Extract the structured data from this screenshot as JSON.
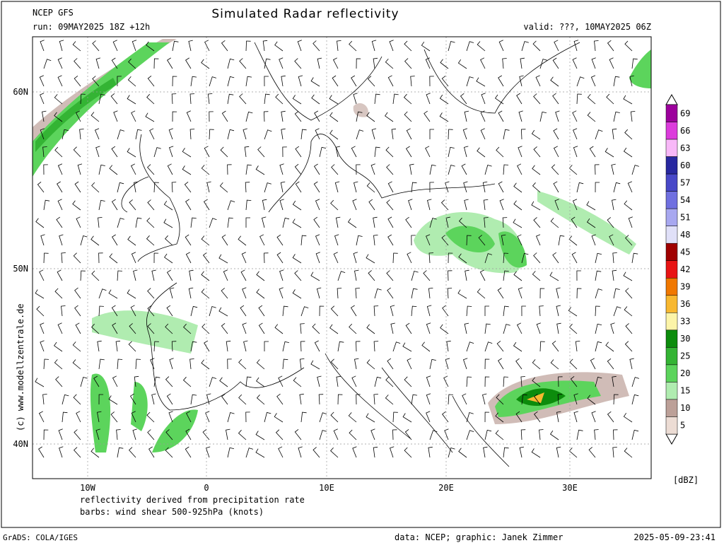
{
  "header": {
    "model": "NCEP GFS",
    "run": "run: 09MAY2025 18Z +12h",
    "title": "Simulated Radar reflectivity",
    "valid": "valid: ???, 10MAY2025 06Z"
  },
  "latitude_labels": [
    "60N",
    "50N",
    "40N"
  ],
  "longitude_labels": [
    "10W",
    "0",
    "10E",
    "20E",
    "30E"
  ],
  "notes": [
    "reflectivity derived from precipitation rate",
    "barbs: wind shear 500-925hPa (knots)"
  ],
  "copyright": "(c) www.modellzentrale.de",
  "footer": {
    "software": "GrADS: COLA/IGES",
    "credit": "data: NCEP; graphic: Janek Zimmer",
    "timestamp": "2025-05-09-23:41"
  },
  "legend": {
    "unit": "[dBZ]",
    "levels": [
      {
        "label": 69,
        "color": "#9c009c"
      },
      {
        "label": 66,
        "color": "#dc3cdc"
      },
      {
        "label": 63,
        "color": "#f8b8f8"
      },
      {
        "label": 60,
        "color": "#2828a0"
      },
      {
        "label": 57,
        "color": "#4848c8"
      },
      {
        "label": 54,
        "color": "#7070e0"
      },
      {
        "label": 51,
        "color": "#a8a8f0"
      },
      {
        "label": 48,
        "color": "#e0e0f8"
      },
      {
        "label": 45,
        "color": "#a00000"
      },
      {
        "label": 42,
        "color": "#e81414"
      },
      {
        "label": 39,
        "color": "#f07800"
      },
      {
        "label": 36,
        "color": "#f8b830"
      },
      {
        "label": 33,
        "color": "#fcf4a8"
      },
      {
        "label": 30,
        "color": "#0c8c0c"
      },
      {
        "label": 25,
        "color": "#34b434"
      },
      {
        "label": 20,
        "color": "#5cd45c"
      },
      {
        "label": 15,
        "color": "#b0ecb0"
      },
      {
        "label": 10,
        "color": "#bca098"
      },
      {
        "label": 5,
        "color": "#ecdcd4"
      }
    ]
  }
}
